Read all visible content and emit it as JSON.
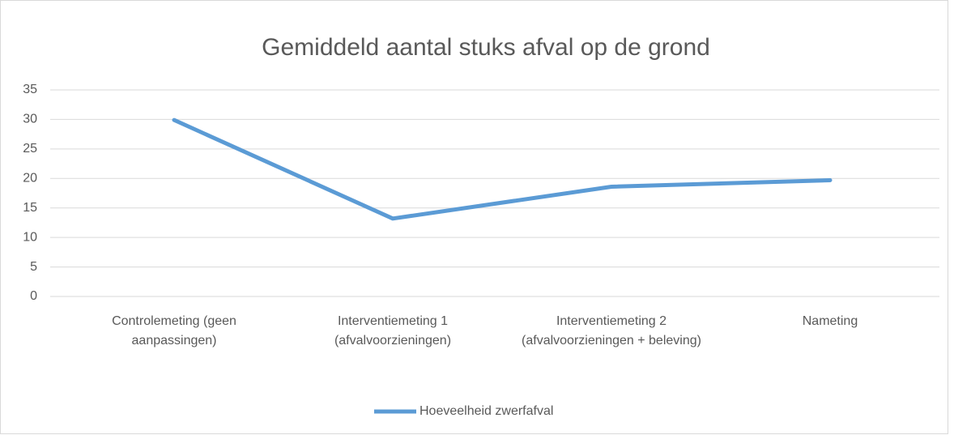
{
  "chart_data": {
    "type": "line",
    "title": "Gemiddeld aantal stuks afval op de grond",
    "categories": [
      "Controlemeting (geen aanpassingen)",
      "Interventiemeting 1 (afvalvoorzieningen)",
      "Interventiemeting 2 (afvalvoorzieningen + beleving)",
      "Nameting"
    ],
    "series": [
      {
        "name": "Hoeveelheid zwerfafval",
        "color": "#5b9bd5",
        "values": [
          29.9,
          13.2,
          18.6,
          19.7
        ]
      }
    ],
    "ylim": [
      0,
      35
    ],
    "yticks": [
      0,
      5,
      10,
      15,
      20,
      25,
      30,
      35
    ],
    "grid": true,
    "legend": "bottom"
  }
}
